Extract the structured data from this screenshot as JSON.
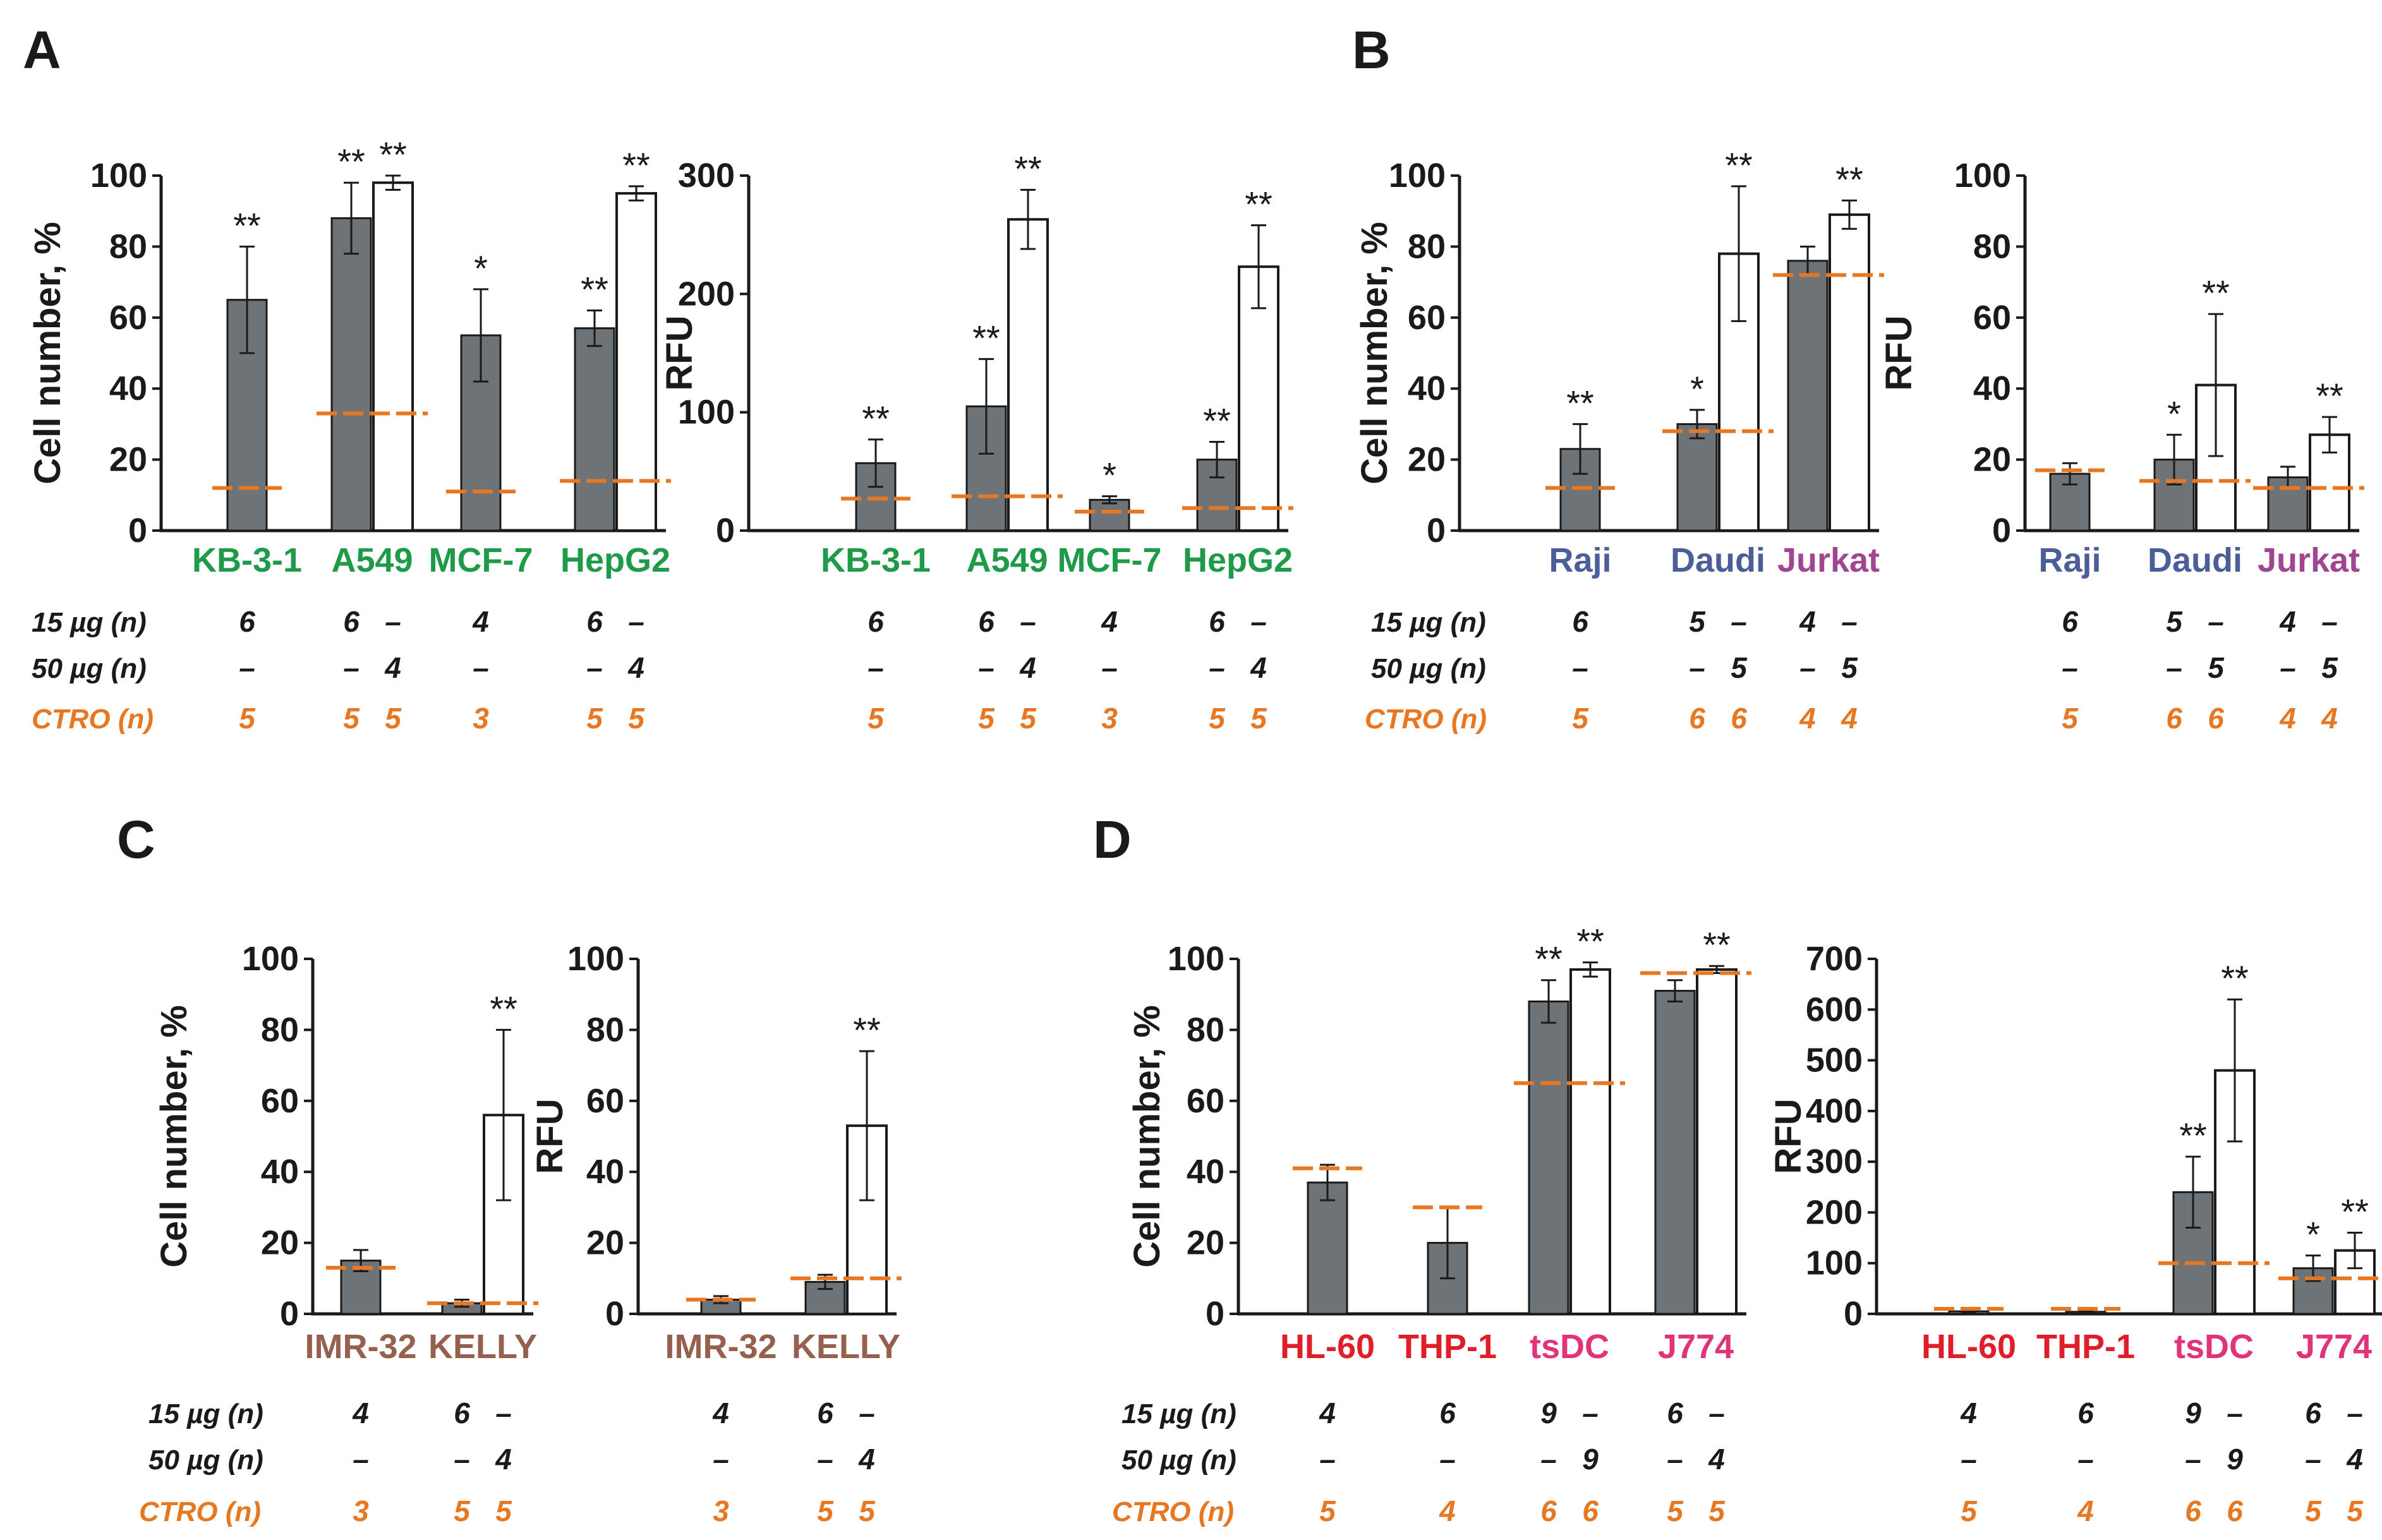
{
  "figure": {
    "background": "#ffffff"
  },
  "colors": {
    "filled_bar": "#6e7378",
    "open_bar": "#ffffff",
    "ctro_line": "#e87722",
    "axis": "#1a1a1a",
    "n_text": "#1a1a1a",
    "ctro_text": "#e87722"
  },
  "row_labels": {
    "n15": "15 µg (n)",
    "n50": "50 µg (n)",
    "ctro": "CTRO (n)"
  },
  "panels": [
    {
      "label": "A"
    },
    {
      "label": "B"
    },
    {
      "label": "C"
    },
    {
      "label": "D"
    }
  ],
  "chart_data": [
    {
      "id": "A-left",
      "type": "bar",
      "panel": "A",
      "ylabel": "Cell number, %",
      "ylim": [
        0,
        100
      ],
      "yticks": [
        0,
        20,
        40,
        60,
        80,
        100
      ],
      "categories": [
        {
          "name": "KB-3-1",
          "color": "#1f9a48",
          "filled": 65,
          "filled_err": 15,
          "filled_sig": "**",
          "open": null,
          "open_err": null,
          "open_sig": "",
          "ctro": 12,
          "n15": "6",
          "n50": "–",
          "nctro": "5"
        },
        {
          "name": "A549",
          "color": "#1f9a48",
          "filled": 88,
          "filled_err": 10,
          "filled_sig": "**",
          "open": 98,
          "open_err": 2,
          "open_sig": "**",
          "ctro": 33,
          "n15": "6",
          "n50": "4",
          "nctro": "5"
        },
        {
          "name": "MCF-7",
          "color": "#1f9a48",
          "filled": 55,
          "filled_err": 13,
          "filled_sig": "*",
          "open": null,
          "open_err": null,
          "open_sig": "",
          "ctro": 11,
          "n15": "4",
          "n50": "–",
          "nctro": "3"
        },
        {
          "name": "HepG2",
          "color": "#1f9a48",
          "filled": 57,
          "filled_err": 5,
          "filled_sig": "**",
          "open": 95,
          "open_err": 2,
          "open_sig": "**",
          "ctro": 14,
          "n15": "6",
          "n50": "4",
          "nctro": "5"
        }
      ]
    },
    {
      "id": "A-right",
      "type": "bar",
      "panel": "A",
      "ylabel": "RFU",
      "ylim": [
        0,
        300
      ],
      "yticks": [
        0,
        100,
        200,
        300
      ],
      "categories": [
        {
          "name": "KB-3-1",
          "color": "#1f9a48",
          "filled": 57,
          "filled_err": 20,
          "filled_sig": "**",
          "open": null,
          "open_err": null,
          "open_sig": "",
          "ctro": 27,
          "n15": "6",
          "n50": "–",
          "nctro": "5"
        },
        {
          "name": "A549",
          "color": "#1f9a48",
          "filled": 105,
          "filled_err": 40,
          "filled_sig": "**",
          "open": 263,
          "open_err": 25,
          "open_sig": "**",
          "ctro": 29,
          "n15": "6",
          "n50": "4",
          "nctro": "5"
        },
        {
          "name": "MCF-7",
          "color": "#1f9a48",
          "filled": 26,
          "filled_err": 3,
          "filled_sig": "*",
          "open": null,
          "open_err": null,
          "open_sig": "",
          "ctro": 16,
          "n15": "4",
          "n50": "–",
          "nctro": "3"
        },
        {
          "name": "HepG2",
          "color": "#1f9a48",
          "filled": 60,
          "filled_err": 15,
          "filled_sig": "**",
          "open": 223,
          "open_err": 35,
          "open_sig": "**",
          "ctro": 19,
          "n15": "6",
          "n50": "4",
          "nctro": "5"
        }
      ]
    },
    {
      "id": "B-left",
      "type": "bar",
      "panel": "B",
      "ylabel": "Cell number, %",
      "ylim": [
        0,
        100
      ],
      "yticks": [
        0,
        20,
        40,
        60,
        80,
        100
      ],
      "categories": [
        {
          "name": "Raji",
          "color": "#4c5e9a",
          "filled": 23,
          "filled_err": 7,
          "filled_sig": "**",
          "open": null,
          "open_err": null,
          "open_sig": "",
          "ctro": 12,
          "n15": "6",
          "n50": "–",
          "nctro": "5"
        },
        {
          "name": "Daudi",
          "color": "#4c5e9a",
          "filled": 30,
          "filled_err": 4,
          "filled_sig": "*",
          "open": 78,
          "open_err": 19,
          "open_sig": "**",
          "ctro": 28,
          "n15": "5",
          "n50": "5",
          "nctro": "6"
        },
        {
          "name": "Jurkat",
          "color": "#a0458f",
          "filled": 76,
          "filled_err": 4,
          "filled_sig": "",
          "open": 89,
          "open_err": 4,
          "open_sig": "**",
          "ctro": 72,
          "n15": "4",
          "n50": "5",
          "nctro": "4"
        }
      ]
    },
    {
      "id": "B-right",
      "type": "bar",
      "panel": "B",
      "ylabel": "RFU",
      "ylim": [
        0,
        100
      ],
      "yticks": [
        0,
        20,
        40,
        60,
        80,
        100
      ],
      "categories": [
        {
          "name": "Raji",
          "color": "#4c5e9a",
          "filled": 16,
          "filled_err": 3,
          "filled_sig": "",
          "open": null,
          "open_err": null,
          "open_sig": "",
          "ctro": 17,
          "n15": "6",
          "n50": "–",
          "nctro": "5"
        },
        {
          "name": "Daudi",
          "color": "#4c5e9a",
          "filled": 20,
          "filled_err": 7,
          "filled_sig": "*",
          "open": 41,
          "open_err": 20,
          "open_sig": "**",
          "ctro": 14,
          "n15": "5",
          "n50": "5",
          "nctro": "6"
        },
        {
          "name": "Jurkat",
          "color": "#a0458f",
          "filled": 15,
          "filled_err": 3,
          "filled_sig": "",
          "open": 27,
          "open_err": 5,
          "open_sig": "**",
          "ctro": 12,
          "n15": "4",
          "n50": "5",
          "nctro": "4"
        }
      ]
    },
    {
      "id": "C-left",
      "type": "bar",
      "panel": "C",
      "ylabel": "Cell number, %",
      "ylim": [
        0,
        100
      ],
      "yticks": [
        0,
        20,
        40,
        60,
        80,
        100
      ],
      "categories": [
        {
          "name": "IMR-32",
          "color": "#96604e",
          "filled": 15,
          "filled_err": 3,
          "filled_sig": "",
          "open": null,
          "open_err": null,
          "open_sig": "",
          "ctro": 13,
          "n15": "4",
          "n50": "–",
          "nctro": "3"
        },
        {
          "name": "KELLY",
          "color": "#96604e",
          "filled": 3,
          "filled_err": 1,
          "filled_sig": "",
          "open": 56,
          "open_err": 24,
          "open_sig": "**",
          "ctro": 3,
          "n15": "6",
          "n50": "4",
          "nctro": "5"
        }
      ]
    },
    {
      "id": "C-right",
      "type": "bar",
      "panel": "C",
      "ylabel": "RFU",
      "ylim": [
        0,
        100
      ],
      "yticks": [
        0,
        20,
        40,
        60,
        80,
        100
      ],
      "categories": [
        {
          "name": "IMR-32",
          "color": "#96604e",
          "filled": 4,
          "filled_err": 1,
          "filled_sig": "",
          "open": null,
          "open_err": null,
          "open_sig": "",
          "ctro": 4,
          "n15": "4",
          "n50": "–",
          "nctro": "3"
        },
        {
          "name": "KELLY",
          "color": "#96604e",
          "filled": 9,
          "filled_err": 2,
          "filled_sig": "",
          "open": 53,
          "open_err": 21,
          "open_sig": "**",
          "ctro": 10,
          "n15": "6",
          "n50": "4",
          "nctro": "5"
        }
      ]
    },
    {
      "id": "D-left",
      "type": "bar",
      "panel": "D",
      "ylabel": "Cell number, %",
      "ylim": [
        0,
        100
      ],
      "yticks": [
        0,
        20,
        40,
        60,
        80,
        100
      ],
      "categories": [
        {
          "name": "HL-60",
          "color": "#e01e2a",
          "filled": 37,
          "filled_err": 5,
          "filled_sig": "",
          "open": null,
          "open_err": null,
          "open_sig": "",
          "ctro": 41,
          "n15": "4",
          "n50": "–",
          "nctro": "5"
        },
        {
          "name": "THP-1",
          "color": "#e01e2a",
          "filled": 20,
          "filled_err": 10,
          "filled_sig": "",
          "open": null,
          "open_err": null,
          "open_sig": "",
          "ctro": 30,
          "n15": "6",
          "n50": "–",
          "nctro": "4"
        },
        {
          "name": "tsDC",
          "color": "#e0337a",
          "filled": 88,
          "filled_err": 6,
          "filled_sig": "**",
          "open": 97,
          "open_err": 2,
          "open_sig": "**",
          "ctro": 65,
          "n15": "9",
          "n50": "9",
          "nctro": "6"
        },
        {
          "name": "J774",
          "color": "#e0337a",
          "filled": 91,
          "filled_err": 3,
          "filled_sig": "",
          "open": 97,
          "open_err": 1,
          "open_sig": "**",
          "ctro": 96,
          "n15": "6",
          "n50": "4",
          "nctro": "5"
        }
      ]
    },
    {
      "id": "D-right",
      "type": "bar",
      "panel": "D",
      "ylabel": "RFU",
      "ylim": [
        0,
        700
      ],
      "yticks": [
        0,
        100,
        200,
        300,
        400,
        500,
        600,
        700
      ],
      "categories": [
        {
          "name": "HL-60",
          "color": "#e01e2a",
          "filled": 5,
          "filled_err": 2,
          "filled_sig": "",
          "open": null,
          "open_err": null,
          "open_sig": "",
          "ctro": 10,
          "n15": "4",
          "n50": "–",
          "nctro": "5"
        },
        {
          "name": "THP-1",
          "color": "#e01e2a",
          "filled": 4,
          "filled_err": 2,
          "filled_sig": "",
          "open": null,
          "open_err": null,
          "open_sig": "",
          "ctro": 10,
          "n15": "6",
          "n50": "–",
          "nctro": "4"
        },
        {
          "name": "tsDC",
          "color": "#e0337a",
          "filled": 240,
          "filled_err": 70,
          "filled_sig": "**",
          "open": 480,
          "open_err": 140,
          "open_sig": "**",
          "ctro": 100,
          "n15": "9",
          "n50": "9",
          "nctro": "6"
        },
        {
          "name": "J774",
          "color": "#e0337a",
          "filled": 90,
          "filled_err": 25,
          "filled_sig": "*",
          "open": 125,
          "open_err": 35,
          "open_sig": "**",
          "ctro": 70,
          "n15": "6",
          "n50": "4",
          "nctro": "5"
        }
      ]
    }
  ]
}
